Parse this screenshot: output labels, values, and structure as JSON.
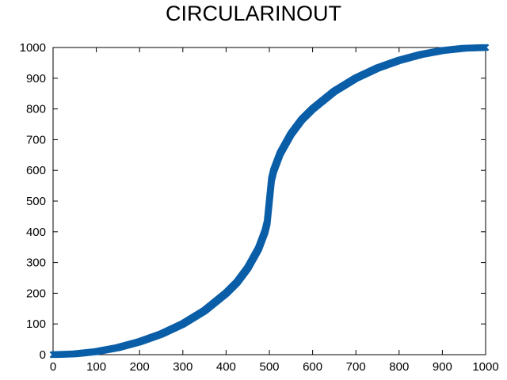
{
  "chart_data": {
    "type": "scatter",
    "title": "CIRCULARINOUT",
    "xlabel": "",
    "ylabel": "",
    "xlim": [
      0,
      1000
    ],
    "ylim": [
      0,
      1000
    ],
    "xticks": [
      "0",
      "100",
      "200",
      "300",
      "400",
      "500",
      "600",
      "700",
      "800",
      "900",
      "1000"
    ],
    "yticks": [
      "0",
      "100",
      "200",
      "300",
      "400",
      "500",
      "600",
      "700",
      "800",
      "900",
      "1000"
    ],
    "grid": false,
    "legend": "none",
    "marker": "x",
    "series_color": "#0b5fa8",
    "series": [
      {
        "x": [
          0,
          50,
          100,
          150,
          200,
          250,
          300,
          350,
          400,
          425,
          450,
          475,
          490,
          495,
          500,
          505,
          510,
          525,
          550,
          575,
          600,
          650,
          700,
          750,
          800,
          850,
          900,
          950,
          1000
        ],
        "y": [
          0,
          2.5,
          10,
          23,
          42,
          67,
          100,
          143,
          200,
          235,
          282,
          345,
          401,
          430,
          500,
          570,
          599,
          655,
          718,
          765,
          800,
          857,
          900,
          933,
          958,
          977,
          990,
          997.5,
          1000
        ]
      }
    ]
  }
}
